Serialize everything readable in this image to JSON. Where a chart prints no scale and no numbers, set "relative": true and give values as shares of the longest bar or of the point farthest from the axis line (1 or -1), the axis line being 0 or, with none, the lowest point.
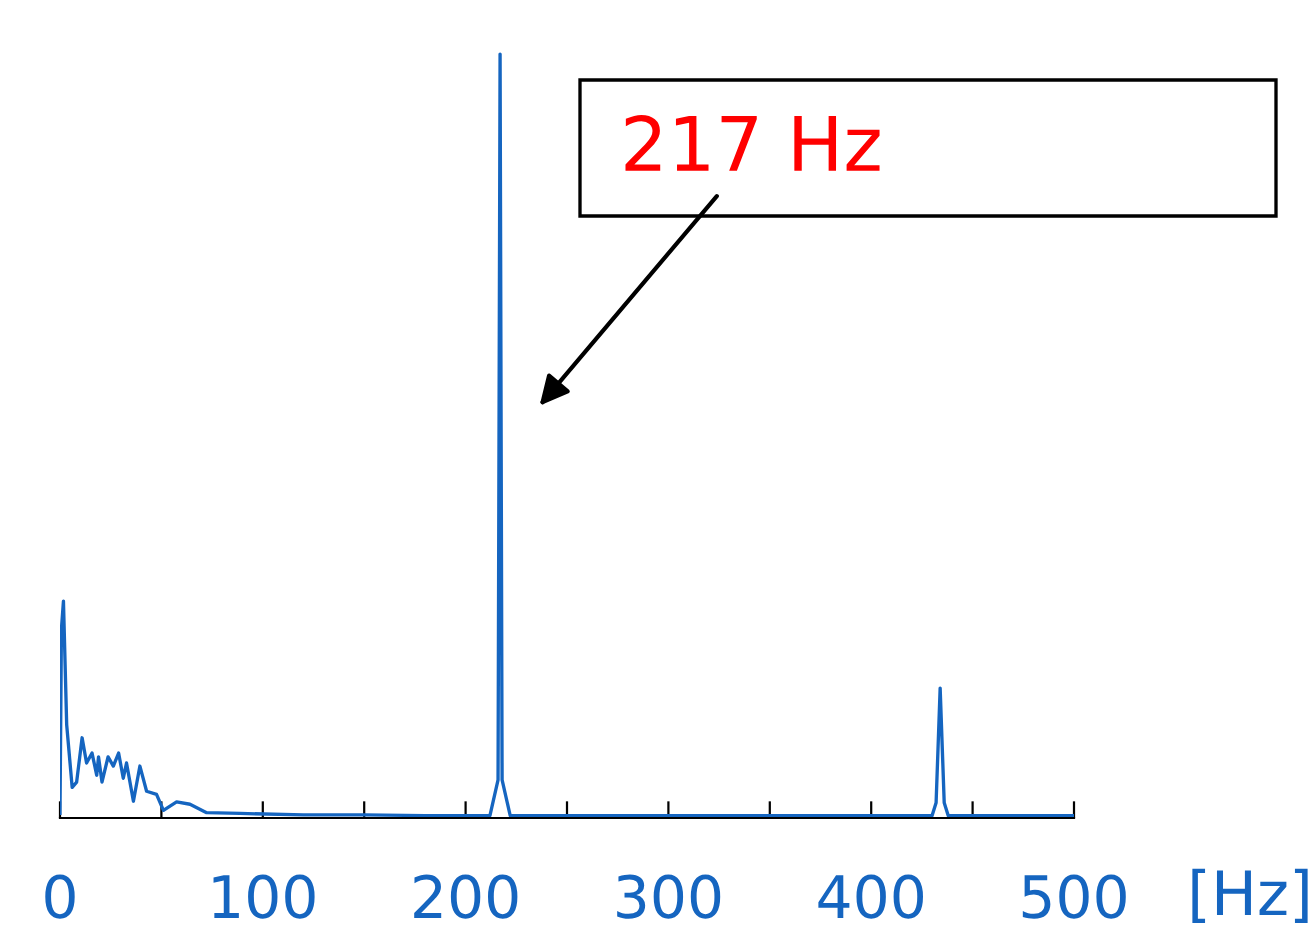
{
  "chart_data": {
    "type": "line",
    "relative": true,
    "xlabel": "[Hz]",
    "x": [
      0,
      0.7,
      1.7,
      3.3,
      6,
      8.2,
      10.9,
      13.1,
      15.8,
      18.1,
      19,
      20.7,
      23.7,
      26.3,
      28.9,
      31.2,
      32.8,
      36.2,
      39.4,
      42.7,
      47.6,
      51,
      57.5,
      64.1,
      72.3,
      88.8,
      120,
      150,
      180,
      212,
      216,
      217,
      218,
      222,
      260,
      300,
      350,
      400,
      430,
      432,
      434,
      436,
      438,
      470,
      500
    ],
    "series": [
      {
        "color": "#1565c0",
        "values": [
          0.006,
          0.247,
          0.284,
          0.122,
          0.04,
          0.047,
          0.105,
          0.072,
          0.085,
          0.056,
          0.08,
          0.047,
          0.08,
          0.068,
          0.085,
          0.052,
          0.072,
          0.022,
          0.068,
          0.035,
          0.031,
          0.01,
          0.021,
          0.018,
          0.007,
          0.006,
          0.004,
          0.004,
          0.003,
          0.003,
          0.05,
          1,
          0.05,
          0.003,
          0.003,
          0.003,
          0.003,
          0.003,
          0.003,
          0.02,
          0.17,
          0.02,
          0.003,
          0.003,
          0.003
        ]
      }
    ],
    "xlim": [
      0,
      500
    ],
    "xticks": [
      0,
      {
        "value": 50,
        "label": null
      },
      100,
      {
        "value": 150,
        "label": null
      },
      200,
      {
        "value": 250,
        "label": null
      },
      300,
      {
        "value": 350,
        "label": null
      },
      400,
      {
        "value": 450,
        "label": null
      },
      500
    ],
    "annotations": [
      "217 Hz"
    ],
    "grid": false,
    "legend": false
  }
}
